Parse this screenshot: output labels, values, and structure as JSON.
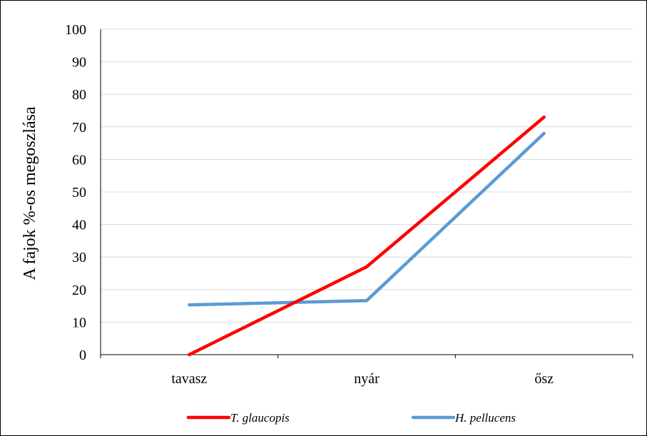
{
  "chart_data": {
    "type": "line",
    "title": "",
    "xlabel": "",
    "ylabel": "A fajok %-os megoszlása",
    "categories": [
      "tavasz",
      "nyár",
      "ősz"
    ],
    "ylim": [
      0,
      100
    ],
    "yticks": [
      "0",
      "10",
      "20",
      "30",
      "40",
      "50",
      "60",
      "70",
      "80",
      "90",
      "100"
    ],
    "grid": true,
    "legend_position": "bottom",
    "series": [
      {
        "name": "T. glaucopis",
        "values": [
          0,
          27,
          73
        ],
        "color": "#ff0000"
      },
      {
        "name": "H. pellucens",
        "values": [
          15.3,
          16.6,
          68
        ],
        "color": "#5b9bd5"
      }
    ]
  }
}
